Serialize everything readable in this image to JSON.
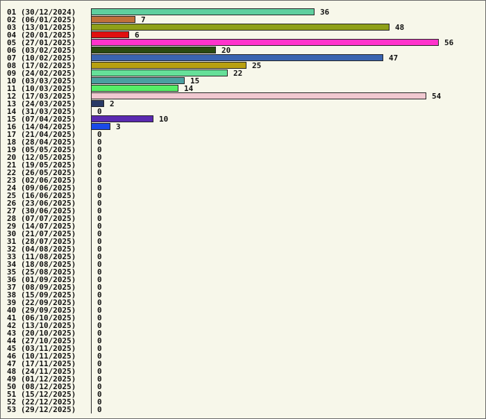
{
  "chart_data": {
    "type": "bar",
    "orientation": "horizontal",
    "title": "",
    "xlabel": "",
    "ylabel": "",
    "xlim": [
      0,
      56
    ],
    "grid": false,
    "legend": "none",
    "categories": [
      "01 (30/12/2024)",
      "02 (06/01/2025)",
      "03 (13/01/2025)",
      "04 (20/01/2025)",
      "05 (27/01/2025)",
      "06 (03/02/2025)",
      "07 (10/02/2025)",
      "08 (17/02/2025)",
      "09 (24/02/2025)",
      "10 (03/03/2025)",
      "11 (10/03/2025)",
      "12 (17/03/2025)",
      "13 (24/03/2025)",
      "14 (31/03/2025)",
      "15 (07/04/2025)",
      "16 (14/04/2025)",
      "17 (21/04/2025)",
      "18 (28/04/2025)",
      "19 (05/05/2025)",
      "20 (12/05/2025)",
      "21 (19/05/2025)",
      "22 (26/05/2025)",
      "23 (02/06/2025)",
      "24 (09/06/2025)",
      "25 (16/06/2025)",
      "26 (23/06/2025)",
      "27 (30/06/2025)",
      "28 (07/07/2025)",
      "29 (14/07/2025)",
      "30 (21/07/2025)",
      "31 (28/07/2025)",
      "32 (04/08/2025)",
      "33 (11/08/2025)",
      "34 (18/08/2025)",
      "35 (25/08/2025)",
      "36 (01/09/2025)",
      "37 (08/09/2025)",
      "38 (15/09/2025)",
      "39 (22/09/2025)",
      "40 (29/09/2025)",
      "41 (06/10/2025)",
      "42 (13/10/2025)",
      "43 (20/10/2025)",
      "44 (27/10/2025)",
      "45 (03/11/2025)",
      "46 (10/11/2025)",
      "47 (17/11/2025)",
      "48 (24/11/2025)",
      "49 (01/12/2025)",
      "50 (08/12/2025)",
      "51 (15/12/2025)",
      "52 (22/12/2025)",
      "53 (29/12/2025)"
    ],
    "values": [
      36,
      7,
      48,
      6,
      56,
      20,
      47,
      25,
      22,
      15,
      14,
      54,
      2,
      0,
      10,
      3,
      0,
      0,
      0,
      0,
      0,
      0,
      0,
      0,
      0,
      0,
      0,
      0,
      0,
      0,
      0,
      0,
      0,
      0,
      0,
      0,
      0,
      0,
      0,
      0,
      0,
      0,
      0,
      0,
      0,
      0,
      0,
      0,
      0,
      0,
      0,
      0,
      0
    ],
    "colors": [
      "#5fcf9f",
      "#c0703a",
      "#8fa018",
      "#e01010",
      "#ff33cc",
      "#2a4a10",
      "#3a64b0",
      "#b8a010",
      "#66e099",
      "#4aa0a0",
      "#55ee66",
      "#f0c8d0",
      "#2a3a66",
      "#888888",
      "#5a2ab0",
      "#1a4ae8"
    ]
  }
}
